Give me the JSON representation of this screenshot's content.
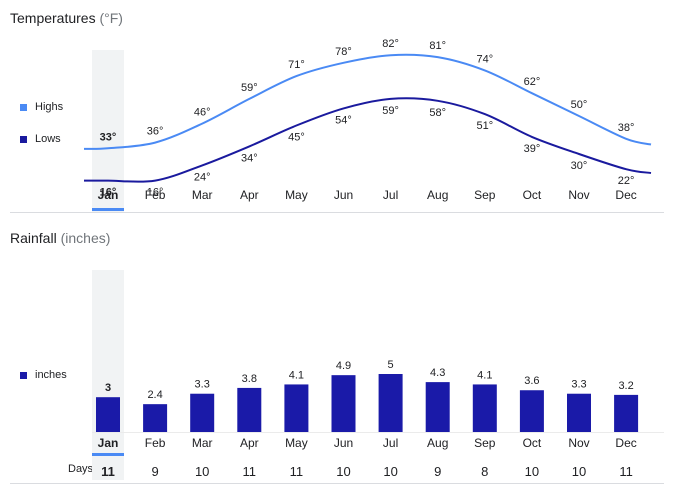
{
  "temperatures": {
    "title": "Temperatures",
    "unit": "(°F)",
    "legend": {
      "highs": "Highs",
      "lows": "Lows"
    },
    "colors": {
      "highs": "#4a8af4",
      "lows": "#1a1a9e"
    }
  },
  "rainfall": {
    "title": "Rainfall",
    "unit": "(inches)",
    "legend": {
      "inches": "inches"
    },
    "colors": {
      "bar": "#1a1aa8"
    },
    "days_label": "Days"
  },
  "selected_month_index": 0,
  "chart_data": [
    {
      "type": "line",
      "title": "Temperatures (°F)",
      "categories": [
        "Jan",
        "Feb",
        "Mar",
        "Apr",
        "May",
        "Jun",
        "Jul",
        "Aug",
        "Sep",
        "Oct",
        "Nov",
        "Dec"
      ],
      "series": [
        {
          "name": "Highs",
          "values": [
            33,
            36,
            46,
            59,
            71,
            78,
            82,
            81,
            74,
            62,
            50,
            38
          ],
          "labels": [
            "33°",
            "36°",
            "46°",
            "59°",
            "71°",
            "78°",
            "82°",
            "81°",
            "74°",
            "62°",
            "50°",
            "38°"
          ]
        },
        {
          "name": "Lows",
          "values": [
            16,
            16,
            24,
            34,
            45,
            54,
            59,
            58,
            51,
            39,
            30,
            22
          ],
          "labels": [
            "16°",
            "16°",
            "24°",
            "34°",
            "45°",
            "54°",
            "59°",
            "58°",
            "51°",
            "39°",
            "30°",
            "22°"
          ]
        }
      ],
      "ylim": [
        10,
        90
      ]
    },
    {
      "type": "bar",
      "title": "Rainfall (inches)",
      "categories": [
        "Jan",
        "Feb",
        "Mar",
        "Apr",
        "May",
        "Jun",
        "Jul",
        "Aug",
        "Sep",
        "Oct",
        "Nov",
        "Dec"
      ],
      "series": [
        {
          "name": "inches",
          "values": [
            3,
            2.4,
            3.3,
            3.8,
            4.1,
            4.9,
            5,
            4.3,
            4.1,
            3.6,
            3.3,
            3.2
          ],
          "labels": [
            "3",
            "2.4",
            "3.3",
            "3.8",
            "4.1",
            "4.9",
            "5",
            "4.3",
            "4.1",
            "3.6",
            "3.3",
            "3.2"
          ]
        }
      ],
      "days": [
        "11",
        "9",
        "10",
        "11",
        "11",
        "10",
        "10",
        "9",
        "8",
        "10",
        "10",
        "11"
      ],
      "ylim": [
        0,
        5
      ]
    }
  ]
}
